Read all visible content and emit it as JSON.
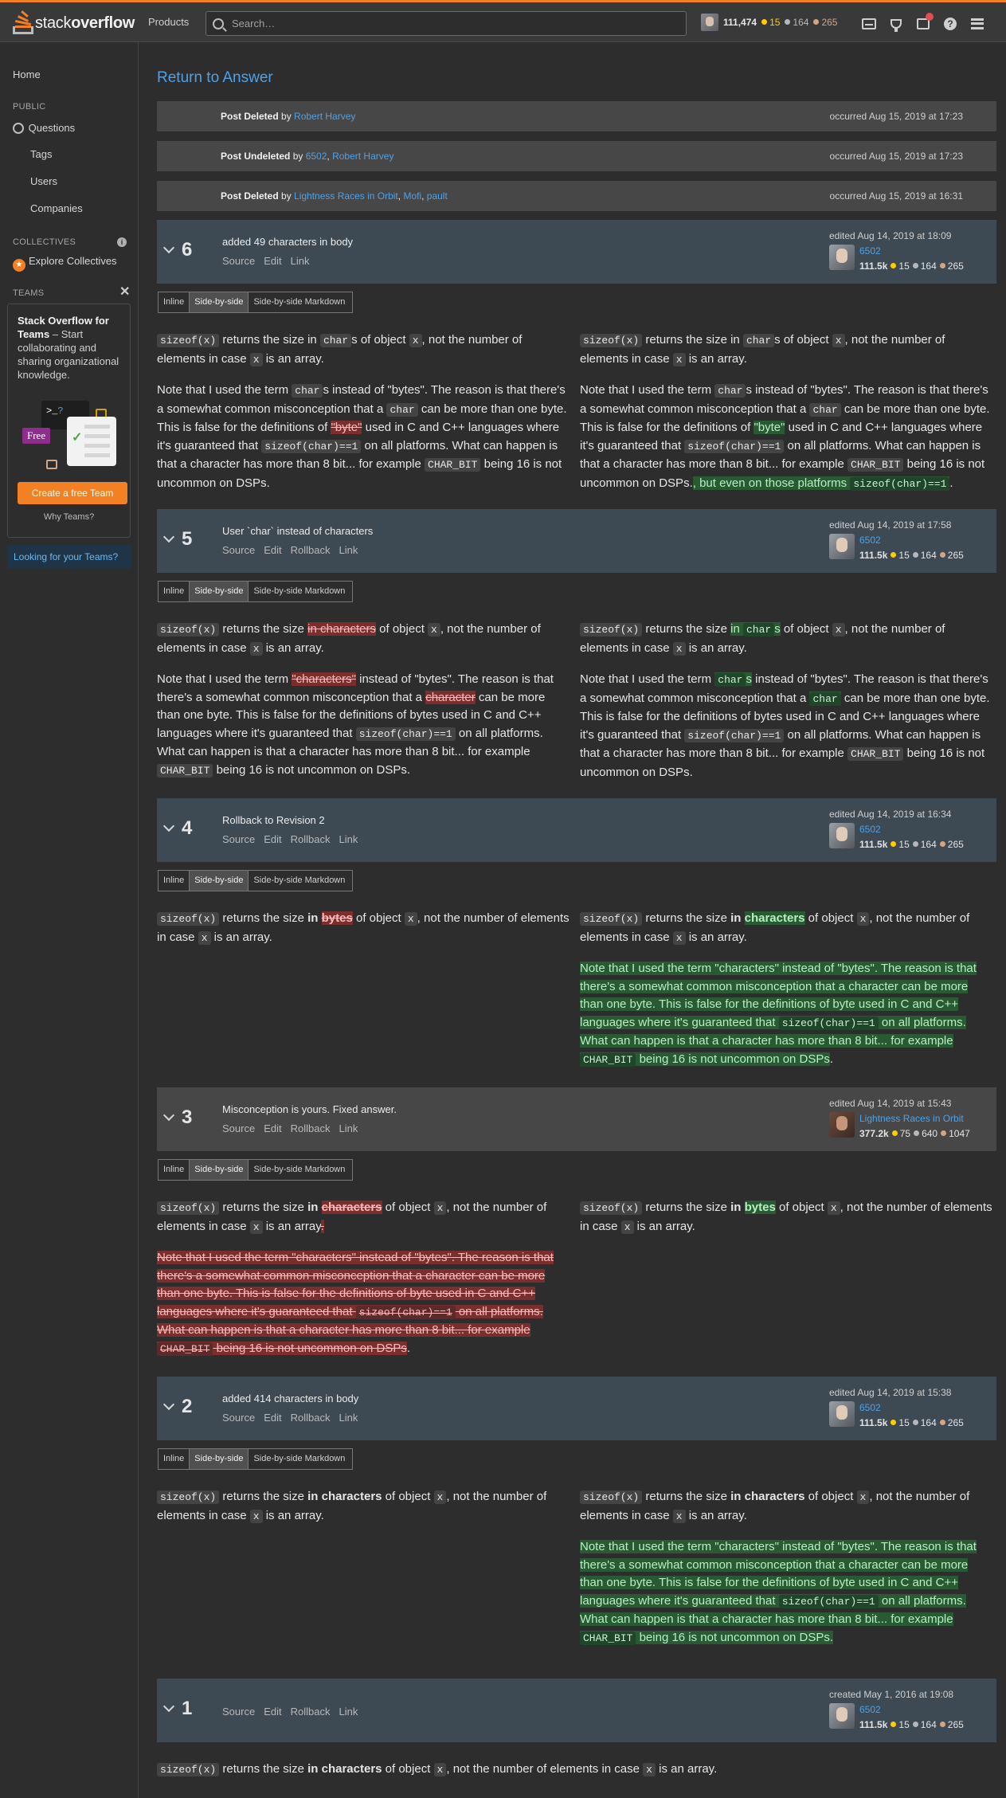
{
  "topbar": {
    "logo_prefix": "stack",
    "logo_bold": "overflow",
    "products": "Products",
    "search_placeholder": "Search…",
    "rep": "111,474",
    "gold": "15",
    "silver": "164",
    "bronze": "265",
    "help": "?"
  },
  "nav": {
    "home": "Home",
    "public": "PUBLIC",
    "questions": "Questions",
    "tags": "Tags",
    "users": "Users",
    "companies": "Companies",
    "collectives": "COLLECTIVES",
    "explore": "Explore Collectives",
    "teams": "TEAMS",
    "teams_title": "Stack Overflow for Teams",
    "teams_desc": " – Start collaborating and sharing organizational knowledge.",
    "free_badge": "Free",
    "terminal_prompt": ">_",
    "terminal_q": "?",
    "create_team": "Create a free Team",
    "why_teams": "Why Teams?",
    "looking": "Looking for your Teams?"
  },
  "main": {
    "return_link": "Return to Answer",
    "events": [
      {
        "action": "Post Deleted",
        "by": " by ",
        "users": [
          "Robert Harvey"
        ],
        "time": "occurred Aug 15, 2019 at 17:23"
      },
      {
        "action": "Post Undeleted",
        "by": " by ",
        "users": [
          "6502",
          "Robert Harvey"
        ],
        "time": "occurred Aug 15, 2019 at 17:23"
      },
      {
        "action": "Post Deleted",
        "by": " by ",
        "users": [
          "Lightness Races in Orbit",
          "Mofi",
          "pault"
        ],
        "time": "occurred Aug 15, 2019 at 16:31"
      }
    ],
    "tabs": [
      "Inline",
      "Side-by-side",
      "Side-by-side Markdown"
    ],
    "revisions": [
      {
        "num": "6",
        "comment": "added 49 characters in body",
        "links": [
          "Source",
          "Edit",
          "Link"
        ],
        "when": "edited Aug 14, 2019 at 18:09",
        "user": "6502",
        "rep": "111.5k",
        "gold": "15",
        "silver": "164",
        "bronze": "265"
      },
      {
        "num": "5",
        "comment": "User `char` instead of characters",
        "links": [
          "Source",
          "Edit",
          "Rollback",
          "Link"
        ],
        "when": "edited Aug 14, 2019 at 17:58",
        "user": "6502",
        "rep": "111.5k",
        "gold": "15",
        "silver": "164",
        "bronze": "265"
      },
      {
        "num": "4",
        "comment": "Rollback to Revision 2",
        "links": [
          "Source",
          "Edit",
          "Rollback",
          "Link"
        ],
        "when": "edited Aug 14, 2019 at 16:34",
        "user": "6502",
        "rep": "111.5k",
        "gold": "15",
        "silver": "164",
        "bronze": "265"
      },
      {
        "num": "3",
        "comment": "Misconception is yours. Fixed answer.",
        "links": [
          "Source",
          "Edit",
          "Rollback",
          "Link"
        ],
        "when": "edited Aug 14, 2019 at 15:43",
        "user": "Lightness Races in Orbit",
        "rep": "377.2k",
        "gold": "75",
        "silver": "640",
        "bronze": "1047"
      },
      {
        "num": "2",
        "comment": "added 414 characters in body",
        "links": [
          "Source",
          "Edit",
          "Rollback",
          "Link"
        ],
        "when": "edited Aug 14, 2019 at 15:38",
        "user": "6502",
        "rep": "111.5k",
        "gold": "15",
        "silver": "164",
        "bronze": "265"
      },
      {
        "num": "1",
        "comment": "",
        "links": [
          "Source",
          "Edit",
          "Rollback",
          "Link"
        ],
        "when": "created May 1, 2016 at 19:08",
        "user": "6502",
        "rep": "111.5k",
        "gold": "15",
        "silver": "164",
        "bronze": "265"
      }
    ],
    "text": {
      "sizeof": "sizeof(x)",
      "returns": " returns the size ",
      "returns_in": " returns the size in ",
      "in_chars": "in characters",
      "in_bytes": "in bytes",
      "of_obj": " of object ",
      "x": "x",
      "not_num": ", not the number of elements in case ",
      "is_array": " is an array.",
      "in": "in",
      "char": "char",
      "s": "s",
      "dot": ".",
      "bytes": "bytes",
      "byte_q": "\"byte\"",
      "characters": "characters",
      "characters_q": "\"characters\"",
      "character": "character",
      "note_1": "Note that I used the term ",
      "note_2": " instead of \"bytes\". The reason is that there's a somewhat common misconception that a ",
      "note_3": " can be more than one byte. This is false for the definitions of ",
      "note_4": " used in C and C++ languages where it's guaranteed that ",
      "sizeof_char": "sizeof(char)==1",
      "note_5": " on all platforms. What can happen is that a character has more than 8 bit... for example ",
      "char_bit": "CHAR_BIT",
      "note_6": " being 16 is not uncommon on DSPs.",
      "even_on": ", but even on those platforms ",
      "note_full_a": "Note that I used the term \"characters\" instead of \"bytes\". The reason is that there's a somewhat common misconception that a character can be more than one byte. This is false for the definitions of byte used in C and C++ languages where it's guaranteed that ",
      "note_full_b": " on all platforms. What can happen is that a character has more than 8 bit... for example ",
      "note_full_c": " being 16 is not uncommon on DSPs"
    }
  }
}
